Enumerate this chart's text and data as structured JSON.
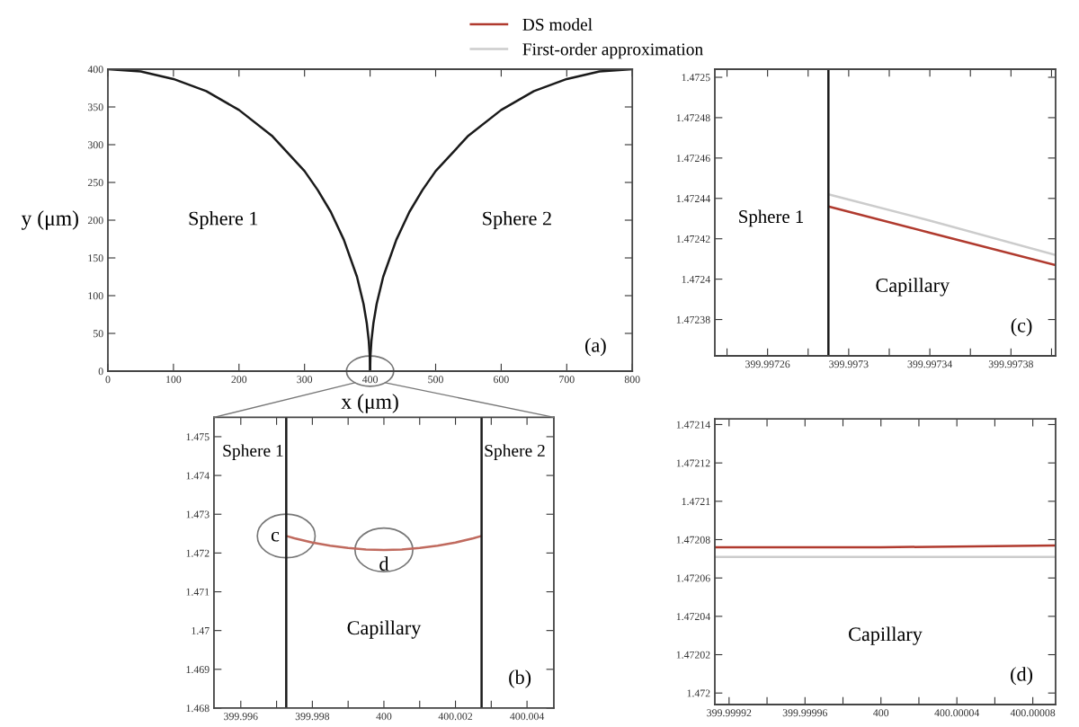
{
  "chart_data": [
    {
      "type": "line",
      "xlabel": "x (μm)",
      "ylabel": "y (μm)",
      "xlim": [
        0,
        800
      ],
      "ylim": [
        0,
        400
      ],
      "xticks": [
        0,
        100,
        200,
        300,
        400,
        500,
        600,
        700,
        800
      ],
      "yticks": [
        0,
        50,
        100,
        150,
        200,
        250,
        300,
        350,
        400
      ],
      "series": [
        {
          "color": "#1a1a1a",
          "x": [
            0,
            50,
            100,
            150,
            200,
            250,
            300,
            320,
            340,
            360,
            380,
            390,
            395,
            398,
            399.5,
            400
          ],
          "values": [
            400,
            397,
            387,
            371,
            346,
            312,
            265,
            240,
            211,
            174,
            125,
            89,
            63,
            40,
            20,
            0
          ]
        },
        {
          "color": "#1a1a1a",
          "x": [
            400,
            400.5,
            402,
            405,
            410,
            420,
            440,
            460,
            480,
            500,
            550,
            600,
            650,
            700,
            750,
            800
          ],
          "values": [
            0,
            20,
            40,
            63,
            89,
            125,
            174,
            211,
            240,
            265,
            312,
            346,
            371,
            387,
            397,
            400
          ]
        }
      ],
      "annotations": [
        "Sphere 1",
        "Sphere 2",
        "(a)"
      ]
    },
    {
      "type": "line",
      "xlim": [
        399.99525,
        400.00475
      ],
      "ylim": [
        1.468,
        1.4755
      ],
      "xticks": [
        399.996,
        {
          "value": 399.997,
          "label": null
        },
        399.998,
        {
          "value": 399.999,
          "label": null
        },
        400,
        {
          "value": 400.001,
          "label": null
        },
        400.002,
        {
          "value": 400.003,
          "label": null
        },
        400.004
      ],
      "yticks": [
        1.468,
        1.469,
        1.47,
        1.471,
        1.472,
        1.473,
        1.474,
        1.475
      ],
      "series": [
        {
          "color": "#c06a5e",
          "x": [
            399.99727,
            399.9975,
            399.998,
            399.9985,
            399.999,
            399.9995,
            400,
            400.0005,
            400.001,
            400.0015,
            400.002,
            400.0025,
            400.00273
          ],
          "values": [
            1.47244,
            1.47238,
            1.47227,
            1.47219,
            1.47213,
            1.47209,
            1.47208,
            1.47209,
            1.47213,
            1.47219,
            1.47227,
            1.47238,
            1.47244
          ]
        },
        {
          "color": "#1a1a1a",
          "x": [
            399.99727,
            399.99727
          ],
          "values": [
            1.468,
            1.4755
          ]
        },
        {
          "color": "#1a1a1a",
          "x": [
            400.00273,
            400.00273
          ],
          "values": [
            1.468,
            1.4755
          ]
        }
      ],
      "annotations": [
        "Sphere 1",
        "Sphere 2",
        "Capillary",
        "c",
        "d",
        "(b)"
      ]
    },
    {
      "type": "line",
      "xlim": [
        399.997234,
        399.997402
      ],
      "ylim": [
        1.472362,
        1.472504
      ],
      "legend": "top left",
      "xticks": [
        {
          "value": 399.99724,
          "label": null
        },
        399.99726,
        {
          "value": 399.99728,
          "label": null
        },
        399.9973,
        {
          "value": 399.99732,
          "label": null
        },
        399.99734,
        {
          "value": 399.99736,
          "label": null
        },
        399.99738,
        {
          "value": 399.9974,
          "label": null
        }
      ],
      "yticks": [
        1.47238,
        1.4724,
        1.47242,
        1.47244,
        1.47246,
        1.47248,
        1.4725
      ],
      "series": [
        {
          "name": "DS model",
          "color": "#b03a2e",
          "x": [
            399.99729,
            399.99734,
            399.997402
          ],
          "values": [
            1.472436,
            1.472423,
            1.472407
          ]
        },
        {
          "name": "First-order approximation",
          "color": "#cccccc",
          "x": [
            399.99729,
            399.99734,
            399.997402
          ],
          "values": [
            1.472442,
            1.472429,
            1.472412
          ]
        },
        {
          "color": "#1a1a1a",
          "x": [
            399.99729,
            399.99729
          ],
          "values": [
            1.472362,
            1.472504
          ]
        }
      ],
      "annotations": [
        "Sphere 1",
        "Capillary",
        "(c)"
      ]
    },
    {
      "type": "line",
      "xlim": [
        399.9999125,
        400.000092
      ],
      "ylim": [
        1.471994,
        1.472143
      ],
      "xticks": [
        399.99992,
        {
          "value": 399.99994,
          "label": null
        },
        399.99996,
        {
          "value": 399.99998,
          "label": null
        },
        400,
        {
          "value": 400.00002,
          "label": null
        },
        400.00004,
        {
          "value": 400.00006,
          "label": null
        },
        400.00008
      ],
      "yticks": [
        1.472,
        1.47202,
        1.47204,
        1.47206,
        1.47208,
        1.4721,
        1.47212,
        1.47214
      ],
      "series": [
        {
          "color": "#b03a2e",
          "x": [
            399.9999125,
            400,
            400.000092
          ],
          "values": [
            1.472076,
            1.472076,
            1.472077
          ]
        },
        {
          "color": "#cccccc",
          "x": [
            399.9999125,
            400,
            400.000092
          ],
          "values": [
            1.472071,
            1.472071,
            1.472071
          ]
        }
      ],
      "annotations": [
        "Capillary",
        "(d)"
      ]
    }
  ]
}
